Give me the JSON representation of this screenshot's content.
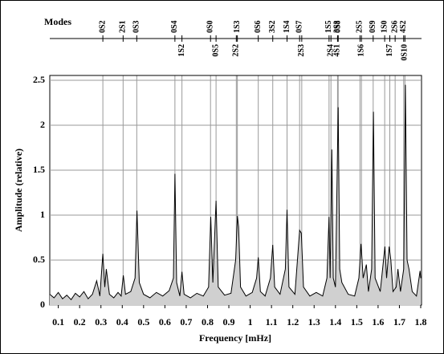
{
  "chart_data": {
    "type": "line",
    "title": "Modes",
    "xlabel": "Frequency [mHz]",
    "ylabel": "Amplitude (relative)",
    "xlim": [
      0.06,
      1.8
    ],
    "ylim": [
      0,
      2.5
    ],
    "xticks": [
      0.1,
      0.2,
      0.3,
      0.4,
      0.5,
      0.6,
      0.7,
      0.8,
      0.9,
      1,
      1.1,
      1.2,
      1.3,
      1.4,
      1.5,
      1.6,
      1.7,
      1.8
    ],
    "yticks": [
      0,
      0.5,
      1,
      1.5,
      2,
      2.5
    ],
    "grid": true,
    "color": "#000000",
    "fill": "#d0d0d0",
    "modes_top": [
      {
        "label": "0S2",
        "x": 0.309
      },
      {
        "label": "2S1",
        "x": 0.404
      },
      {
        "label": "0S3",
        "x": 0.468
      },
      {
        "label": "0S4",
        "x": 0.647
      },
      {
        "label": "0S0",
        "x": 0.814
      },
      {
        "label": "1S3",
        "x": 0.94
      },
      {
        "label": "0S6",
        "x": 1.038
      },
      {
        "label": "3S2",
        "x": 1.106
      },
      {
        "label": "1S4",
        "x": 1.173
      },
      {
        "label": "0S7",
        "x": 1.232
      },
      {
        "label": "1S5",
        "x": 1.37
      },
      {
        "label": "3S3",
        "x": 1.41
      },
      {
        "label": "0S8",
        "x": 1.413
      },
      {
        "label": "2S5",
        "x": 1.515
      },
      {
        "label": "0S9",
        "x": 1.577
      },
      {
        "label": "1S0",
        "x": 1.631
      },
      {
        "label": "2S6",
        "x": 1.68
      },
      {
        "label": "4S2",
        "x": 1.72
      }
    ],
    "modes_bottom": [
      {
        "label": "1S2",
        "x": 0.68
      },
      {
        "label": "0S5",
        "x": 0.84
      },
      {
        "label": "2S2",
        "x": 0.935
      },
      {
        "label": "2S3",
        "x": 1.242
      },
      {
        "label": "2S4",
        "x": 1.379
      },
      {
        "label": "4S1",
        "x": 1.41
      },
      {
        "label": "1S6",
        "x": 1.522
      },
      {
        "label": "1S7",
        "x": 1.655
      },
      {
        "label": "0S10",
        "x": 1.726
      }
    ],
    "x": [
      0.06,
      0.08,
      0.1,
      0.12,
      0.14,
      0.16,
      0.18,
      0.2,
      0.22,
      0.24,
      0.26,
      0.28,
      0.295,
      0.309,
      0.318,
      0.325,
      0.34,
      0.36,
      0.38,
      0.395,
      0.405,
      0.415,
      0.44,
      0.46,
      0.469,
      0.48,
      0.5,
      0.53,
      0.56,
      0.59,
      0.62,
      0.64,
      0.647,
      0.655,
      0.67,
      0.68,
      0.69,
      0.72,
      0.75,
      0.78,
      0.805,
      0.815,
      0.825,
      0.84,
      0.85,
      0.88,
      0.91,
      0.932,
      0.94,
      0.946,
      0.955,
      0.98,
      1.01,
      1.03,
      1.038,
      1.048,
      1.07,
      1.095,
      1.106,
      1.115,
      1.14,
      1.165,
      1.173,
      1.182,
      1.21,
      1.232,
      1.24,
      1.25,
      1.28,
      1.31,
      1.34,
      1.36,
      1.37,
      1.375,
      1.383,
      1.39,
      1.4,
      1.413,
      1.42,
      1.43,
      1.46,
      1.49,
      1.51,
      1.52,
      1.53,
      1.545,
      1.555,
      1.57,
      1.578,
      1.586,
      1.61,
      1.632,
      1.64,
      1.652,
      1.66,
      1.67,
      1.685,
      1.693,
      1.705,
      1.72,
      1.728,
      1.736,
      1.745,
      1.76,
      1.78,
      1.797,
      1.8
    ],
    "values": [
      0.12,
      0.08,
      0.14,
      0.07,
      0.11,
      0.06,
      0.13,
      0.09,
      0.15,
      0.07,
      0.12,
      0.27,
      0.1,
      0.57,
      0.2,
      0.4,
      0.12,
      0.08,
      0.14,
      0.1,
      0.33,
      0.12,
      0.15,
      0.3,
      1.05,
      0.25,
      0.12,
      0.08,
      0.14,
      0.1,
      0.16,
      0.3,
      1.46,
      0.25,
      0.1,
      0.37,
      0.12,
      0.08,
      0.13,
      0.1,
      0.2,
      0.98,
      0.25,
      1.16,
      0.2,
      0.11,
      0.13,
      0.5,
      0.99,
      0.87,
      0.2,
      0.1,
      0.14,
      0.3,
      0.53,
      0.15,
      0.1,
      0.3,
      0.67,
      0.2,
      0.12,
      0.4,
      1.06,
      0.2,
      0.12,
      0.83,
      0.8,
      0.2,
      0.1,
      0.14,
      0.1,
      0.3,
      0.98,
      0.3,
      1.73,
      0.3,
      0.2,
      2.2,
      0.4,
      0.25,
      0.12,
      0.1,
      0.3,
      0.68,
      0.3,
      0.45,
      0.15,
      0.4,
      2.15,
      0.3,
      0.15,
      0.65,
      0.3,
      0.65,
      0.5,
      0.15,
      0.2,
      0.4,
      0.15,
      0.4,
      2.45,
      0.5,
      0.4,
      0.15,
      0.1,
      0.38,
      0.3
    ]
  }
}
